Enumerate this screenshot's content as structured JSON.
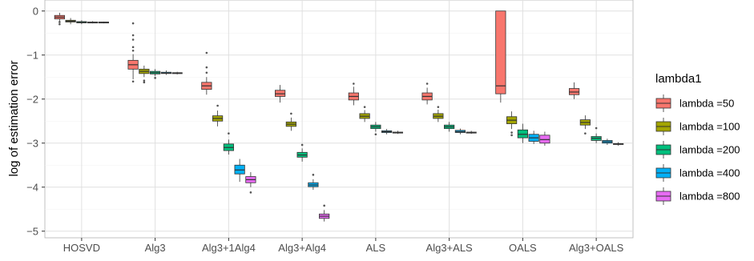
{
  "chart_data": {
    "type": "box",
    "ylabel": "log of estimation error",
    "xlabel": "",
    "ylim": [
      -5.15,
      0.25
    ],
    "yticks": [
      0,
      -1,
      -2,
      -3,
      -4,
      -5
    ],
    "ytick_labels": [
      "0",
      "−1",
      "−2",
      "−3",
      "−4",
      "−5"
    ],
    "grid": true,
    "legend": {
      "title": "lambda1",
      "placement": "right",
      "entries": [
        "lambda =50",
        "lambda =100",
        "lambda =200",
        "lambda =400",
        "lambda =800"
      ]
    },
    "categories": [
      "HOSVD",
      "Alg3",
      "Alg3+1Alg4",
      "Alg3+Alg4",
      "ALS",
      "Alg3+ALS",
      "OALS",
      "Alg3+OALS"
    ],
    "series": [
      {
        "name": "lambda =50",
        "color": "#F8766D",
        "boxes": [
          {
            "category": "HOSVD",
            "low": -0.24,
            "q1": -0.18,
            "median": -0.14,
            "q3": -0.1,
            "high": -0.04,
            "outliers": [
              -0.3,
              -0.25
            ]
          },
          {
            "category": "Alg3",
            "low": -1.55,
            "q1": -1.32,
            "median": -1.22,
            "q3": -1.12,
            "high": -0.98,
            "outliers": [
              -0.28,
              -0.55,
              -0.65,
              -0.82,
              -0.9,
              -1.6
            ]
          },
          {
            "category": "Alg3+1Alg4",
            "low": -1.9,
            "q1": -1.78,
            "median": -1.7,
            "q3": -1.62,
            "high": -1.5,
            "outliers": [
              -0.95,
              -1.28,
              -1.4
            ]
          },
          {
            "category": "Alg3+Alg4",
            "low": -2.08,
            "q1": -1.94,
            "median": -1.88,
            "q3": -1.8,
            "high": -1.68,
            "outliers": []
          },
          {
            "category": "ALS",
            "low": -2.14,
            "q1": -2.02,
            "median": -1.94,
            "q3": -1.86,
            "high": -1.72,
            "outliers": [
              -1.65
            ]
          },
          {
            "category": "Alg3+ALS",
            "low": -2.12,
            "q1": -2.02,
            "median": -1.94,
            "q3": -1.86,
            "high": -1.74,
            "outliers": [
              -1.65
            ]
          },
          {
            "category": "OALS",
            "low": -2.08,
            "q1": -1.88,
            "median": -1.7,
            "q3": 0.0,
            "high": 0.0,
            "outliers": []
          },
          {
            "category": "Alg3+OALS",
            "low": -2.0,
            "q1": -1.9,
            "median": -1.84,
            "q3": -1.76,
            "high": -1.62,
            "outliers": []
          }
        ]
      },
      {
        "name": "lambda =100",
        "color": "#A3A500",
        "boxes": [
          {
            "category": "HOSVD",
            "low": -0.3,
            "q1": -0.25,
            "median": -0.23,
            "q3": -0.21,
            "high": -0.16,
            "outliers": []
          },
          {
            "category": "Alg3",
            "low": -1.5,
            "q1": -1.42,
            "median": -1.37,
            "q3": -1.32,
            "high": -1.24,
            "outliers": [
              -1.58,
              -1.62
            ]
          },
          {
            "category": "Alg3+1Alg4",
            "low": -2.62,
            "q1": -2.5,
            "median": -2.44,
            "q3": -2.38,
            "high": -2.26,
            "outliers": [
              -2.15
            ]
          },
          {
            "category": "Alg3+Alg4",
            "low": -2.72,
            "q1": -2.62,
            "median": -2.57,
            "q3": -2.52,
            "high": -2.42,
            "outliers": [
              -2.33
            ]
          },
          {
            "category": "ALS",
            "low": -2.52,
            "q1": -2.44,
            "median": -2.39,
            "q3": -2.33,
            "high": -2.25,
            "outliers": [
              -2.18
            ]
          },
          {
            "category": "Alg3+ALS",
            "low": -2.52,
            "q1": -2.44,
            "median": -2.39,
            "q3": -2.33,
            "high": -2.24,
            "outliers": [
              -2.18
            ]
          },
          {
            "category": "OALS",
            "low": -2.68,
            "q1": -2.56,
            "median": -2.48,
            "q3": -2.4,
            "high": -2.28,
            "outliers": [
              -2.82,
              -2.76
            ]
          },
          {
            "category": "Alg3+OALS",
            "low": -2.68,
            "q1": -2.59,
            "median": -2.53,
            "q3": -2.47,
            "high": -2.37,
            "outliers": [
              -2.78
            ]
          }
        ]
      },
      {
        "name": "lambda =200",
        "color": "#00BF7D",
        "boxes": [
          {
            "category": "HOSVD",
            "low": -0.3,
            "q1": -0.27,
            "median": -0.26,
            "q3": -0.24,
            "high": -0.21,
            "outliers": []
          },
          {
            "category": "Alg3",
            "low": -1.48,
            "q1": -1.43,
            "median": -1.4,
            "q3": -1.37,
            "high": -1.32,
            "outliers": [
              -1.52
            ]
          },
          {
            "category": "Alg3+1Alg4",
            "low": -3.26,
            "q1": -3.17,
            "median": -3.1,
            "q3": -3.02,
            "high": -2.92,
            "outliers": [
              -2.78
            ]
          },
          {
            "category": "Alg3+Alg4",
            "low": -3.42,
            "q1": -3.32,
            "median": -3.27,
            "q3": -3.21,
            "high": -3.12,
            "outliers": [
              -3.04
            ]
          },
          {
            "category": "ALS",
            "low": -2.74,
            "q1": -2.67,
            "median": -2.63,
            "q3": -2.59,
            "high": -2.52,
            "outliers": [
              -2.8
            ]
          },
          {
            "category": "Alg3+ALS",
            "low": -2.74,
            "q1": -2.67,
            "median": -2.63,
            "q3": -2.59,
            "high": -2.52,
            "outliers": []
          },
          {
            "category": "OALS",
            "low": -3.0,
            "q1": -2.88,
            "median": -2.8,
            "q3": -2.7,
            "high": -2.56,
            "outliers": []
          },
          {
            "category": "Alg3+OALS",
            "low": -3.0,
            "q1": -2.94,
            "median": -2.89,
            "q3": -2.85,
            "high": -2.78,
            "outliers": [
              -2.66
            ]
          }
        ]
      },
      {
        "name": "lambda =400",
        "color": "#00B0F6",
        "boxes": [
          {
            "category": "HOSVD",
            "low": -0.28,
            "q1": -0.27,
            "median": -0.26,
            "q3": -0.25,
            "high": -0.23,
            "outliers": []
          },
          {
            "category": "Alg3",
            "low": -1.45,
            "q1": -1.42,
            "median": -1.41,
            "q3": -1.39,
            "high": -1.35,
            "outliers": []
          },
          {
            "category": "Alg3+1Alg4",
            "low": -3.88,
            "q1": -3.7,
            "median": -3.61,
            "q3": -3.5,
            "high": -3.36,
            "outliers": []
          },
          {
            "category": "Alg3+Alg4",
            "low": -4.06,
            "q1": -3.99,
            "median": -3.95,
            "q3": -3.9,
            "high": -3.82,
            "outliers": [
              -3.72
            ]
          },
          {
            "category": "ALS",
            "low": -2.8,
            "q1": -2.76,
            "median": -2.74,
            "q3": -2.72,
            "high": -2.68,
            "outliers": []
          },
          {
            "category": "Alg3+ALS",
            "low": -2.8,
            "q1": -2.76,
            "median": -2.74,
            "q3": -2.71,
            "high": -2.67,
            "outliers": []
          },
          {
            "category": "OALS",
            "low": -3.02,
            "q1": -2.96,
            "median": -2.88,
            "q3": -2.8,
            "high": -2.72,
            "outliers": []
          },
          {
            "category": "Alg3+OALS",
            "low": -3.04,
            "q1": -3.0,
            "median": -2.97,
            "q3": -2.94,
            "high": -2.9,
            "outliers": []
          }
        ]
      },
      {
        "name": "lambda =800",
        "color": "#E76BF3",
        "boxes": [
          {
            "category": "HOSVD",
            "low": -0.28,
            "q1": -0.27,
            "median": -0.26,
            "q3": -0.25,
            "high": -0.24,
            "outliers": []
          },
          {
            "category": "Alg3",
            "low": -1.44,
            "q1": -1.42,
            "median": -1.41,
            "q3": -1.4,
            "high": -1.38,
            "outliers": []
          },
          {
            "category": "Alg3+1Alg4",
            "low": -4.0,
            "q1": -3.9,
            "median": -3.83,
            "q3": -3.76,
            "high": -3.66,
            "outliers": [
              -4.12
            ]
          },
          {
            "category": "Alg3+Alg4",
            "low": -4.78,
            "q1": -4.71,
            "median": -4.66,
            "q3": -4.61,
            "high": -4.52,
            "outliers": [
              -4.42
            ]
          },
          {
            "category": "ALS",
            "low": -2.79,
            "q1": -2.77,
            "median": -2.76,
            "q3": -2.75,
            "high": -2.72,
            "outliers": []
          },
          {
            "category": "Alg3+ALS",
            "low": -2.79,
            "q1": -2.77,
            "median": -2.76,
            "q3": -2.75,
            "high": -2.72,
            "outliers": []
          },
          {
            "category": "OALS",
            "low": -3.06,
            "q1": -3.0,
            "median": -2.92,
            "q3": -2.82,
            "high": -2.74,
            "outliers": []
          },
          {
            "category": "Alg3+OALS",
            "low": -3.06,
            "q1": -3.03,
            "median": -3.02,
            "q3": -3.01,
            "high": -2.98,
            "outliers": []
          }
        ]
      }
    ]
  }
}
